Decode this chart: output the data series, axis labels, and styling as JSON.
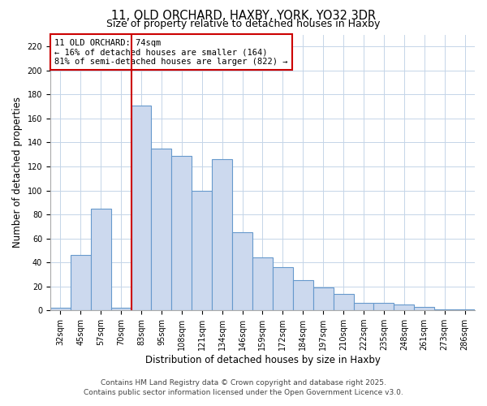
{
  "title": "11, OLD ORCHARD, HAXBY, YORK, YO32 3DR",
  "subtitle": "Size of property relative to detached houses in Haxby",
  "xlabel": "Distribution of detached houses by size in Haxby",
  "ylabel": "Number of detached properties",
  "categories": [
    "32sqm",
    "45sqm",
    "57sqm",
    "70sqm",
    "83sqm",
    "95sqm",
    "108sqm",
    "121sqm",
    "134sqm",
    "146sqm",
    "159sqm",
    "172sqm",
    "184sqm",
    "197sqm",
    "210sqm",
    "222sqm",
    "235sqm",
    "248sqm",
    "261sqm",
    "273sqm",
    "286sqm"
  ],
  "values": [
    2,
    46,
    85,
    2,
    171,
    135,
    129,
    100,
    126,
    65,
    44,
    36,
    25,
    19,
    14,
    6,
    6,
    5,
    3,
    1,
    1
  ],
  "bar_color": "#ccd9ee",
  "bar_edge_color": "#6699cc",
  "vline_x_index": 4,
  "vline_color": "#cc0000",
  "annotation_title": "11 OLD ORCHARD: 74sqm",
  "annotation_line1": "← 16% of detached houses are smaller (164)",
  "annotation_line2": "81% of semi-detached houses are larger (822) →",
  "annotation_box_color": "#ffffff",
  "annotation_box_edge": "#cc0000",
  "ylim": [
    0,
    230
  ],
  "yticks": [
    0,
    20,
    40,
    60,
    80,
    100,
    120,
    140,
    160,
    180,
    200,
    220
  ],
  "footer1": "Contains HM Land Registry data © Crown copyright and database right 2025.",
  "footer2": "Contains public sector information licensed under the Open Government Licence v3.0.",
  "bg_color": "#ffffff",
  "grid_color": "#c5d5e8",
  "title_fontsize": 10.5,
  "subtitle_fontsize": 9,
  "axis_fontsize": 8.5,
  "tick_fontsize": 7,
  "footer_fontsize": 6.5
}
